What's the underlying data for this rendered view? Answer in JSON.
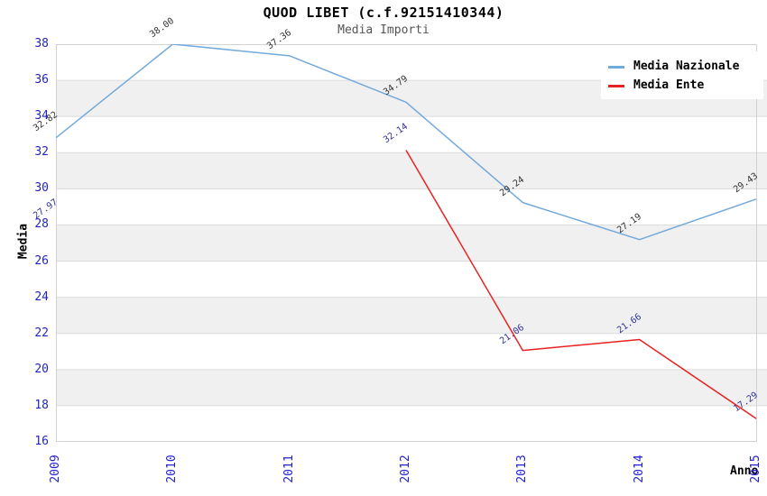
{
  "title": "QUOD LIBET (c.f.92151410344)",
  "subtitle": "Media Importi",
  "legend": {
    "items": [
      {
        "label": "Media Nazionale",
        "color": "#74a9dc"
      },
      {
        "label": "Media Ente",
        "color": "#e62222"
      }
    ]
  },
  "axes": {
    "y_label": "Media",
    "x_label": "Anno",
    "y_ticks": [
      "38",
      "36",
      "34",
      "32",
      "30",
      "28",
      "26",
      "24",
      "22",
      "20",
      "18",
      "16"
    ],
    "x_ticks": [
      "2009",
      "2010",
      "2011",
      "2012",
      "2013",
      "2014",
      "2015"
    ],
    "tick_color": "#2222cc"
  },
  "chart_data": {
    "type": "line",
    "title": "QUOD LIBET (c.f.92151410344)",
    "subtitle": "Media Importi",
    "xlabel": "Anno",
    "ylabel": "Media",
    "x": [
      "2009",
      "2010",
      "2011",
      "2012",
      "2013",
      "2014",
      "2015"
    ],
    "ylim": [
      16,
      38
    ],
    "grid": true,
    "legend_position": "top-right",
    "band_colors": [
      "#ffffff",
      "#f0f0f0"
    ],
    "gridline_color": "#dcdcdc",
    "spine_color": "#d2d2d2",
    "series": [
      {
        "name": "Media Nazionale",
        "color": "#74a9dc",
        "label_color": "#333333",
        "values": [
          32.82,
          38.0,
          37.36,
          34.79,
          29.24,
          27.19,
          29.43
        ]
      },
      {
        "name": "Media Ente",
        "color": "#e62222",
        "label_color": "#333399",
        "values": [
          27.97,
          null,
          null,
          32.14,
          21.06,
          21.66,
          17.29
        ]
      }
    ]
  }
}
